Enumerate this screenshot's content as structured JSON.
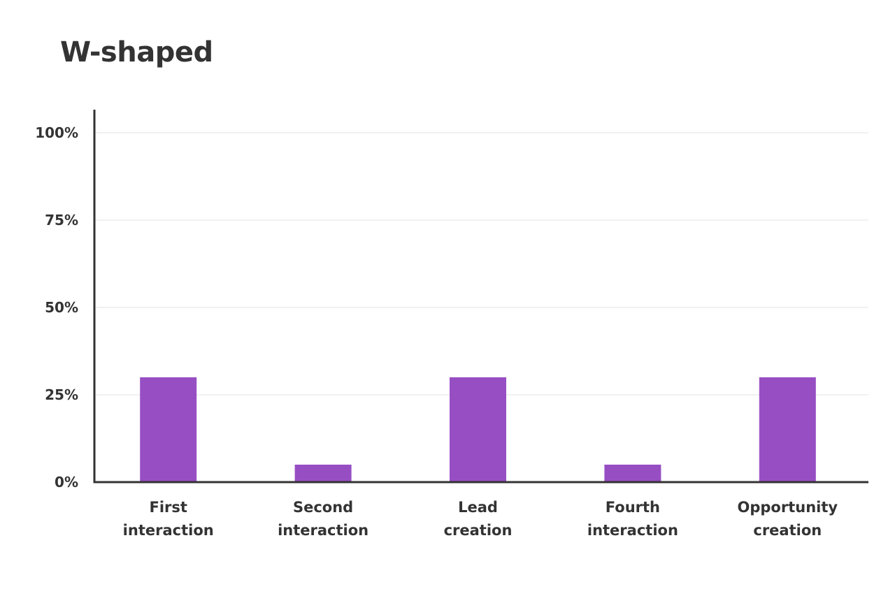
{
  "chart_data": {
    "type": "bar",
    "title": "W-shaped",
    "xlabel": "",
    "ylabel": "",
    "categories": [
      [
        "First",
        "interaction"
      ],
      [
        "Second",
        "interaction"
      ],
      [
        "Lead",
        "creation"
      ],
      [
        "Fourth",
        "interaction"
      ],
      [
        "Opportunity",
        "creation"
      ]
    ],
    "values": [
      30,
      5,
      30,
      5,
      30
    ],
    "ylim": [
      0,
      100
    ],
    "yticks": [
      0,
      25,
      50,
      75,
      100
    ],
    "ytick_labels": [
      "0%",
      "25%",
      "50%",
      "75%",
      "100%"
    ],
    "grid": true,
    "legend": "none",
    "colors": {
      "bar": "#974EC3",
      "axis": "#333333",
      "grid": "#E3E3E3"
    }
  }
}
